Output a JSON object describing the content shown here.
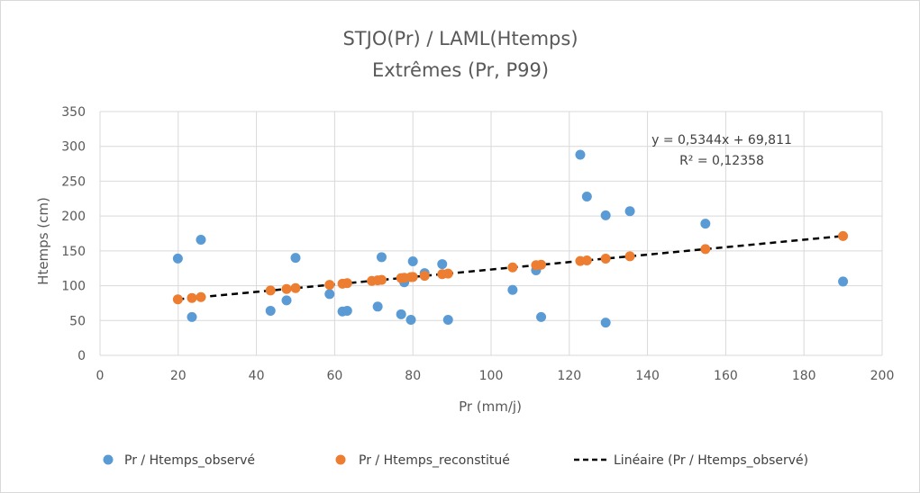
{
  "chart_data": {
    "type": "scatter",
    "title": "STJO(Pr) / LAML(Htemps)",
    "subtitle": "Extrêmes (Pr, P99)",
    "xlabel": "Pr (mm/j)",
    "ylabel": "Htemps (cm)",
    "xlim": [
      0,
      200
    ],
    "ylim": [
      0,
      350
    ],
    "xticks": [
      0,
      20,
      40,
      60,
      80,
      100,
      120,
      140,
      160,
      180,
      200
    ],
    "yticks": [
      0,
      50,
      100,
      150,
      200,
      250,
      300,
      350
    ],
    "grid": true,
    "legend_position": "bottom",
    "series": [
      {
        "name": "Pr / Htemps_observé",
        "color": "#5b9bd5",
        "points": [
          [
            19.9,
            139
          ],
          [
            23.5,
            55
          ],
          [
            25.8,
            166
          ],
          [
            43.6,
            64
          ],
          [
            47.7,
            79
          ],
          [
            50.0,
            140
          ],
          [
            58.7,
            88
          ],
          [
            62.0,
            63
          ],
          [
            63.2,
            64
          ],
          [
            71.0,
            70
          ],
          [
            72.0,
            141
          ],
          [
            77.0,
            59
          ],
          [
            77.8,
            105
          ],
          [
            79.5,
            51
          ],
          [
            80.0,
            135
          ],
          [
            83.0,
            118
          ],
          [
            87.5,
            131
          ],
          [
            89.0,
            51
          ],
          [
            105.5,
            94
          ],
          [
            111.5,
            122
          ],
          [
            112.8,
            55
          ],
          [
            122.8,
            288
          ],
          [
            124.5,
            228
          ],
          [
            129.3,
            47
          ],
          [
            129.3,
            201
          ],
          [
            135.5,
            207
          ],
          [
            154.8,
            189
          ],
          [
            190.0,
            106
          ]
        ]
      },
      {
        "name": "Pr / Htemps_reconstitué",
        "color": "#ed7d31",
        "points": [
          [
            19.9,
            80.4
          ],
          [
            23.5,
            82.4
          ],
          [
            25.8,
            83.6
          ],
          [
            43.6,
            93.1
          ],
          [
            47.7,
            95.3
          ],
          [
            50.0,
            96.5
          ],
          [
            58.7,
            101.2
          ],
          [
            62.0,
            102.9
          ],
          [
            63.2,
            103.6
          ],
          [
            69.5,
            106.9
          ],
          [
            71.0,
            107.7
          ],
          [
            72.0,
            108.3
          ],
          [
            77.0,
            110.9
          ],
          [
            77.8,
            111.4
          ],
          [
            79.5,
            112.3
          ],
          [
            80.0,
            112.6
          ],
          [
            83.0,
            114.2
          ],
          [
            87.5,
            116.6
          ],
          [
            89.0,
            117.4
          ],
          [
            105.5,
            126.2
          ],
          [
            111.5,
            129.4
          ],
          [
            112.8,
            130.1
          ],
          [
            122.8,
            135.4
          ],
          [
            124.5,
            136.3
          ],
          [
            129.3,
            138.9
          ],
          [
            135.5,
            142.2
          ],
          [
            154.8,
            152.5
          ],
          [
            190.0,
            171.3
          ]
        ]
      }
    ],
    "trendline": {
      "name": "Linéaire  (Pr / Htemps_observé)",
      "slope": 0.5344,
      "intercept": 69.811,
      "x_range": [
        19.9,
        190.0
      ],
      "color": "#000000",
      "equation": "y = 0,5344x + 69,811",
      "r2_label": "R² = 0,12358"
    }
  }
}
